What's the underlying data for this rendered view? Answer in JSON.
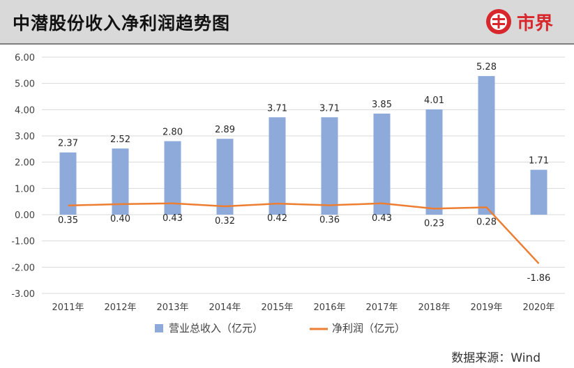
{
  "header": {
    "title": "中潜股份收入净利润趋势图",
    "brand_label": "市界"
  },
  "source": "数据来源：Wind",
  "colors": {
    "revenue_bar": "#8eaadb",
    "net_profit_line": "#ed7d31",
    "brand": "#d7262c",
    "header_bg": "#d9d9d9"
  },
  "chart_data": {
    "type": "bar",
    "categories": [
      "2011年",
      "2012年",
      "2013年",
      "2014年",
      "2015年",
      "2016年",
      "2017年",
      "2018年",
      "2019年",
      "2020年"
    ],
    "series": [
      {
        "name": "营业总收入（亿元）",
        "type": "bar",
        "values": [
          2.37,
          2.52,
          2.8,
          2.89,
          3.71,
          3.71,
          3.85,
          4.01,
          5.28,
          1.71
        ],
        "labels": [
          "2.37",
          "2.52",
          "2.80",
          "2.89",
          "3.71",
          "3.71",
          "3.85",
          "4.01",
          "5.28",
          "1.71"
        ]
      },
      {
        "name": "净利润（亿元）",
        "type": "line",
        "values": [
          0.35,
          0.4,
          0.43,
          0.32,
          0.42,
          0.36,
          0.43,
          0.23,
          0.28,
          -1.86
        ],
        "labels": [
          "0.35",
          "0.40",
          "0.43",
          "0.32",
          "0.42",
          "0.36",
          "0.43",
          "0.23",
          "0.28",
          "-1.86"
        ]
      }
    ],
    "yticks": [
      "6.00",
      "5.00",
      "4.00",
      "3.00",
      "2.00",
      "1.00",
      "0.00",
      "-1.00",
      "-2.00",
      "-3.00"
    ],
    "ylim": [
      -3,
      6
    ],
    "grid": true,
    "legend": "bottom"
  }
}
